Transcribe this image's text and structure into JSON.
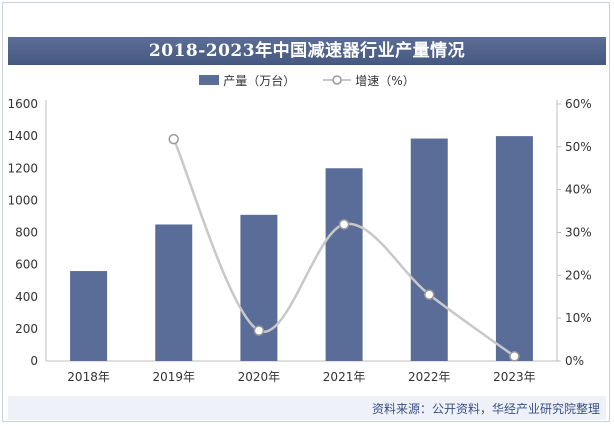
{
  "chart_data": {
    "type": "bar",
    "title": "2018-2023年中国减速器行业产量情况",
    "categories": [
      "2018年",
      "2019年",
      "2020年",
      "2021年",
      "2022年",
      "2023年"
    ],
    "series": [
      {
        "name": "产量（万台）",
        "type": "bar",
        "axis": "left",
        "values": [
          560,
          850,
          910,
          1200,
          1385,
          1400
        ]
      },
      {
        "name": "增速（%）",
        "type": "line",
        "axis": "right",
        "values": [
          null,
          51.8,
          7.1,
          31.9,
          15.5,
          1.1
        ]
      }
    ],
    "ylim_left": [
      0,
      1600
    ],
    "yticks_left": [
      0,
      200,
      400,
      600,
      800,
      1000,
      1200,
      1400,
      1600
    ],
    "ylim_right": [
      0,
      60
    ],
    "yticks_right": [
      "0%",
      "10%",
      "20%",
      "30%",
      "40%",
      "50%",
      "60%"
    ],
    "legend": "top-center",
    "colors": {
      "bar": "#5a6c98",
      "line": "#c8c8c8",
      "title_bg": "#4d6088"
    }
  },
  "legend": {
    "bar_label": "产量（万台）",
    "line_label": "增速（%）"
  },
  "source": "资料来源：公开资料，华经产业研究院整理"
}
